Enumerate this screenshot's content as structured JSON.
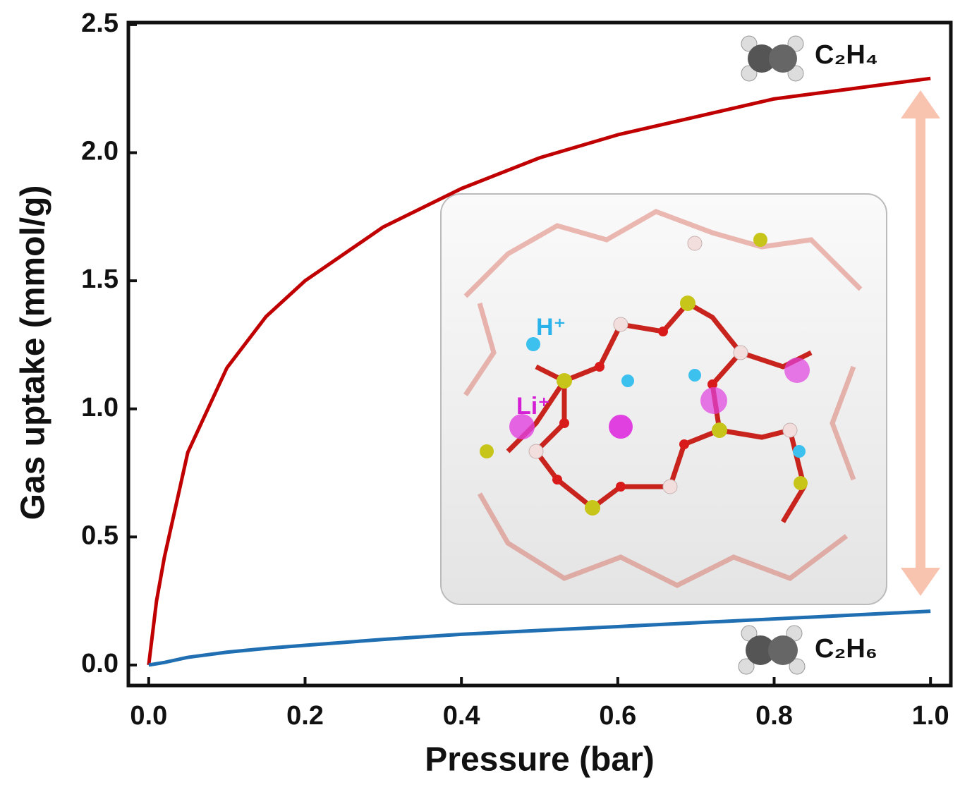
{
  "chart_data": {
    "type": "line",
    "xlabel": "Pressure (bar)",
    "ylabel": "Gas uptake (mmol/g)",
    "xlim": [
      -0.026,
      1.026
    ],
    "ylim": [
      -0.08,
      2.508
    ],
    "xticks": [
      {
        "value": 0,
        "label": "0.0"
      },
      0.2,
      0.4,
      0.6,
      0.8,
      {
        "value": 1,
        "label": "1.0"
      }
    ],
    "yticks": [
      {
        "value": 0,
        "label": "0.0"
      },
      0.5,
      {
        "value": 1,
        "label": "1.0"
      },
      1.5,
      {
        "value": 2,
        "label": "2.0"
      },
      2.5
    ],
    "x": [
      0,
      0.01,
      0.02,
      0.05,
      0.1,
      0.15,
      0.2,
      0.3,
      0.4,
      0.5,
      0.6,
      0.7,
      0.8,
      0.9,
      1.0
    ],
    "series": [
      {
        "name": "C₂H₄",
        "color": "#c00000",
        "values": [
          0,
          0.25,
          0.42,
          0.83,
          1.16,
          1.36,
          1.5,
          1.71,
          1.86,
          1.98,
          2.07,
          2.14,
          2.21,
          2.25,
          2.29
        ]
      },
      {
        "name": "C₂H₆",
        "color": "#1f6fb2",
        "values": [
          0,
          0.005,
          0.01,
          0.03,
          0.05,
          0.065,
          0.077,
          0.1,
          0.12,
          0.135,
          0.15,
          0.165,
          0.18,
          0.195,
          0.21
        ]
      }
    ],
    "annotations": [
      "H⁺",
      "Li⁺"
    ]
  }
}
